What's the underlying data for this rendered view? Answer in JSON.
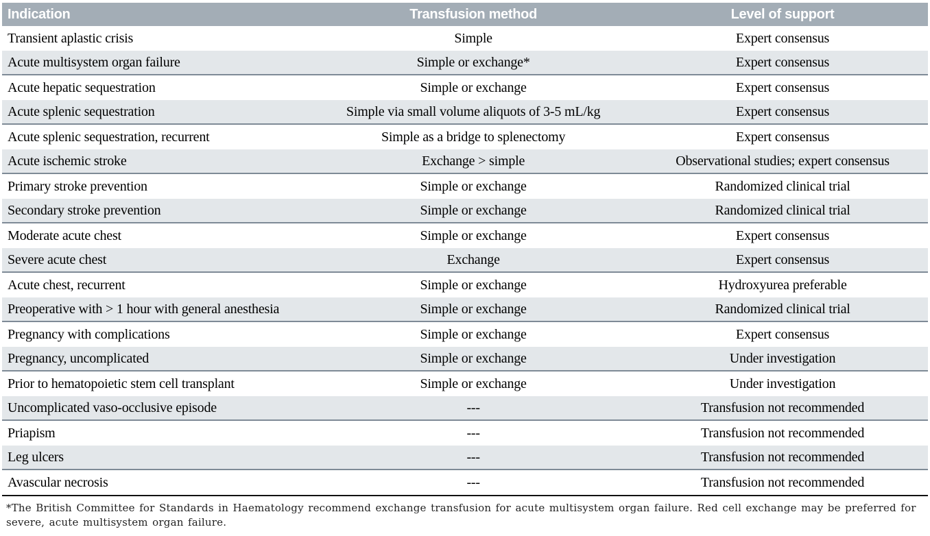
{
  "table": {
    "columns": [
      {
        "label": "Indication",
        "align": "left"
      },
      {
        "label": "Transfusion method",
        "align": "center"
      },
      {
        "label": "Level of support",
        "align": "center"
      }
    ],
    "rows": [
      {
        "indication": "Transient aplastic crisis",
        "method": "Simple",
        "support": "Expert consensus"
      },
      {
        "indication": "Acute multisystem organ failure",
        "method": "Simple or exchange*",
        "support": "Expert consensus"
      },
      {
        "indication": "Acute hepatic sequestration",
        "method": "Simple or exchange",
        "support": "Expert consensus"
      },
      {
        "indication": "Acute splenic sequestration",
        "method": "Simple via small volume aliquots of 3-5 mL/kg",
        "support": "Expert consensus"
      },
      {
        "indication": "Acute splenic sequestration, recurrent",
        "method": "Simple as a bridge to splenectomy",
        "support": "Expert consensus"
      },
      {
        "indication": "Acute ischemic stroke",
        "method": "Exchange > simple",
        "support": "Observational studies; expert consensus"
      },
      {
        "indication": "Primary stroke prevention",
        "method": "Simple or exchange",
        "support": "Randomized clinical trial"
      },
      {
        "indication": "Secondary stroke prevention",
        "method": "Simple or exchange",
        "support": "Randomized clinical trial"
      },
      {
        "indication": "Moderate acute chest",
        "method": "Simple or exchange",
        "support": "Expert consensus"
      },
      {
        "indication": "Severe acute chest",
        "method": "Exchange",
        "support": "Expert consensus"
      },
      {
        "indication": "Acute chest, recurrent",
        "method": "Simple or exchange",
        "support": "Hydroxyurea preferable"
      },
      {
        "indication": "Preoperative with > 1 hour with general anesthesia",
        "method": "Simple or exchange",
        "support": "Randomized clinical trial"
      },
      {
        "indication": "Pregnancy with complications",
        "method": "Simple or exchange",
        "support": "Expert consensus"
      },
      {
        "indication": "Pregnancy, uncomplicated",
        "method": "Simple or exchange",
        "support": "Under investigation"
      },
      {
        "indication": "Prior to hematopoietic stem cell transplant",
        "method": "Simple or exchange",
        "support": "Under investigation"
      },
      {
        "indication": "Uncomplicated vaso-occlusive episode",
        "method": "---",
        "support": "Transfusion not recommended"
      },
      {
        "indication": "Priapism",
        "method": "---",
        "support": "Transfusion not recommended"
      },
      {
        "indication": "Leg ulcers",
        "method": "---",
        "support": "Transfusion not recommended"
      },
      {
        "indication": "Avascular necrosis",
        "method": "---",
        "support": "Transfusion not recommended"
      }
    ]
  },
  "footnote": "*The British Committee for Standards in Haematology recommend exchange transfusion for acute multisystem organ failure. Red cell exchange may be preferred for severe, acute multisystem organ failure.",
  "colors": {
    "header_bg": "#a3adb6",
    "header_text": "#ffffff",
    "shade_bg": "#e3e7ea",
    "shade_border": "#7e8a96",
    "end_border": "#111111"
  }
}
